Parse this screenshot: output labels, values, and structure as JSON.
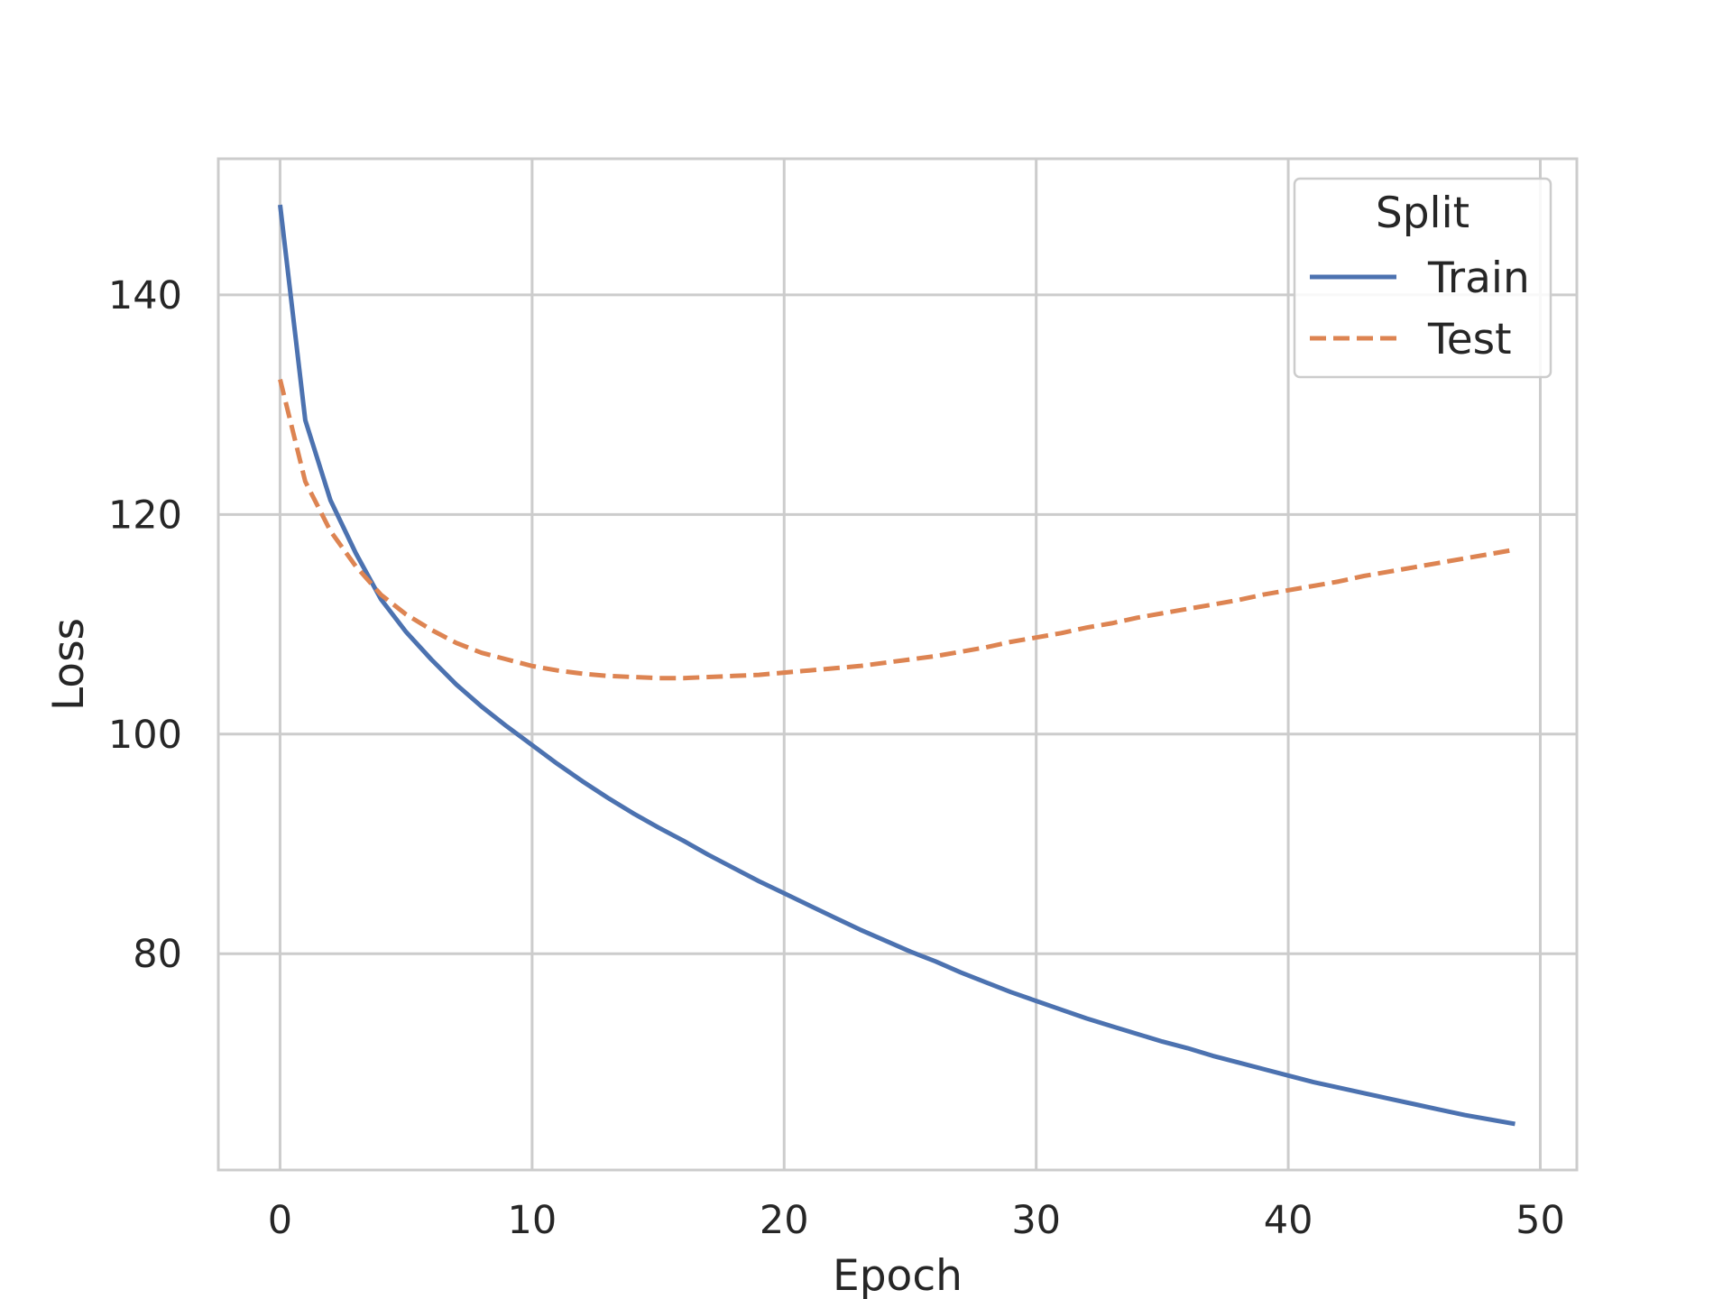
{
  "chart_data": {
    "type": "line",
    "title": "",
    "xlabel": "Epoch",
    "ylabel": "Loss",
    "xlim": [
      -2.45,
      51.45
    ],
    "ylim": [
      60.3,
      152.4
    ],
    "xticks": [
      0,
      10,
      20,
      30,
      40,
      50
    ],
    "yticks": [
      80,
      100,
      120,
      140
    ],
    "grid": true,
    "legend": {
      "title": "Split",
      "position": "upper-right"
    },
    "x": [
      0,
      1,
      2,
      3,
      4,
      5,
      6,
      7,
      8,
      9,
      10,
      11,
      12,
      13,
      14,
      15,
      16,
      17,
      18,
      19,
      20,
      21,
      22,
      23,
      24,
      25,
      26,
      27,
      28,
      29,
      30,
      31,
      32,
      33,
      34,
      35,
      36,
      37,
      38,
      39,
      40,
      41,
      42,
      43,
      44,
      45,
      46,
      47,
      48,
      49
    ],
    "series": [
      {
        "name": "Train",
        "color": "#4c72b0",
        "dash": "solid",
        "values": [
          148.2,
          128.6,
          121.3,
          116.5,
          112.3,
          109.3,
          106.8,
          104.5,
          102.5,
          100.7,
          99.0,
          97.3,
          95.7,
          94.2,
          92.8,
          91.5,
          90.3,
          89.0,
          87.8,
          86.6,
          85.5,
          84.4,
          83.3,
          82.2,
          81.2,
          80.2,
          79.3,
          78.3,
          77.4,
          76.5,
          75.7,
          74.9,
          74.1,
          73.4,
          72.7,
          72.0,
          71.4,
          70.7,
          70.1,
          69.5,
          68.9,
          68.3,
          67.8,
          67.3,
          66.8,
          66.3,
          65.8,
          65.3,
          64.9,
          64.5
        ]
      },
      {
        "name": "Test",
        "color": "#dd8452",
        "dash": "dashed",
        "values": [
          132.3,
          123.0,
          118.5,
          115.3,
          112.7,
          110.9,
          109.5,
          108.3,
          107.4,
          106.8,
          106.2,
          105.8,
          105.5,
          105.3,
          105.2,
          105.1,
          105.1,
          105.2,
          105.3,
          105.4,
          105.6,
          105.8,
          106.0,
          106.2,
          106.5,
          106.8,
          107.1,
          107.5,
          107.9,
          108.4,
          108.8,
          109.2,
          109.7,
          110.1,
          110.6,
          111.0,
          111.4,
          111.8,
          112.2,
          112.7,
          113.1,
          113.5,
          113.9,
          114.4,
          114.8,
          115.2,
          115.6,
          116.0,
          116.4,
          116.8
        ]
      }
    ]
  }
}
